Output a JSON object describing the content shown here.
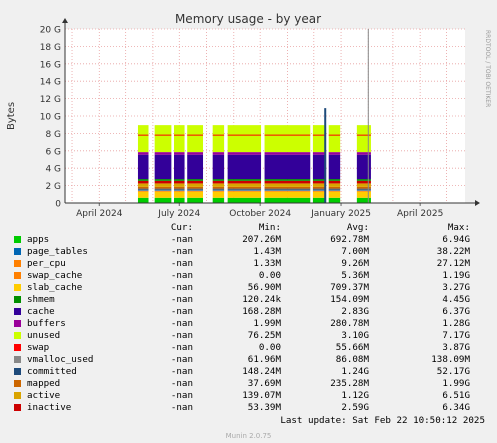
{
  "chart_data": {
    "type": "area",
    "title": "Memory usage - by year",
    "ylabel": "Bytes",
    "ylim": [
      0,
      20
    ],
    "y_unit": "G",
    "y_ticks": [
      "0",
      "2 G",
      "4 G",
      "6 G",
      "8 G",
      "10 G",
      "12 G",
      "14 G",
      "16 G",
      "18 G",
      "20 G"
    ],
    "x_range": [
      "2024-02-22",
      "2025-05-22"
    ],
    "x_ticks": [
      {
        "label": "April 2024",
        "date": "2024-04-01"
      },
      {
        "label": "July 2024",
        "date": "2024-07-01"
      },
      {
        "label": "October 2024",
        "date": "2024-10-01"
      },
      {
        "label": "January 2025",
        "date": "2025-01-01"
      },
      {
        "label": "April 2025",
        "date": "2025-04-01"
      }
    ],
    "grid": true,
    "side_text": "RRDTOOL / TOBI OETIKER",
    "data_segments": [
      [
        "2024-05-15",
        "2024-05-27"
      ],
      [
        "2024-06-03",
        "2024-06-22"
      ],
      [
        "2024-06-25",
        "2024-07-07"
      ],
      [
        "2024-07-10",
        "2024-07-28"
      ],
      [
        "2024-08-08",
        "2024-08-21"
      ],
      [
        "2024-08-25",
        "2024-10-02"
      ],
      [
        "2024-10-06",
        "2024-11-27"
      ],
      [
        "2024-11-30",
        "2024-12-15"
      ],
      [
        "2024-12-18",
        "2024-12-31"
      ],
      [
        "2025-01-19",
        "2025-02-04"
      ]
    ],
    "series_band_G": [
      {
        "name": "apps",
        "color": "#00cc00",
        "value": 0.6
      },
      {
        "name": "slab_cache",
        "color": "#ffcc00",
        "value": 0.7
      },
      {
        "name": "swap_cache",
        "color": "#ff8000",
        "value": 0.1
      },
      {
        "name": "page_tables",
        "color": "#0066b3",
        "value": 0.05
      },
      {
        "name": "vmalloc_used",
        "color": "#888888",
        "value": 0.1
      },
      {
        "name": "committed",
        "color": "#1e4a7a",
        "value": 0.1
      },
      {
        "name": "mapped",
        "color": "#cc6600",
        "value": 0.2
      },
      {
        "name": "active",
        "color": "#d9a400",
        "value": 0.4
      },
      {
        "name": "inactive",
        "color": "#cc0000",
        "value": 0.3
      },
      {
        "name": "shmem",
        "color": "#008f00",
        "value": 0.2
      },
      {
        "name": "cache",
        "color": "#330099",
        "value": 2.8
      },
      {
        "name": "buffers",
        "color": "#990099",
        "value": 0.3
      },
      {
        "name": "unused",
        "color": "#ccff00",
        "value": 3.1
      }
    ],
    "total_G": 7.8,
    "spikes": [
      {
        "series": "committed",
        "date": "2024-12-14",
        "value": 10.9
      },
      {
        "series": "vmalloc_used",
        "date": "2025-02-01",
        "value": 20.0
      }
    ]
  },
  "legend": {
    "headers": {
      "cur": "Cur:",
      "min": "Min:",
      "avg": "Avg:",
      "max": "Max:"
    },
    "rows": [
      {
        "name": "apps",
        "color": "#00cc00",
        "cur": "-nan",
        "min": "207.26M",
        "avg": "692.78M",
        "max": "6.94G"
      },
      {
        "name": "page_tables",
        "color": "#0066b3",
        "cur": "-nan",
        "min": "1.43M",
        "avg": "7.00M",
        "max": "38.22M"
      },
      {
        "name": "per_cpu",
        "color": "#ff8000",
        "cur": "-nan",
        "min": "1.33M",
        "avg": "9.26M",
        "max": "27.12M"
      },
      {
        "name": "swap_cache",
        "color": "#ff8000",
        "cur": "-nan",
        "min": "0.00",
        "avg": "5.36M",
        "max": "1.19G"
      },
      {
        "name": "slab_cache",
        "color": "#ffcc00",
        "cur": "-nan",
        "min": "56.90M",
        "avg": "709.37M",
        "max": "3.27G"
      },
      {
        "name": "shmem",
        "color": "#008f00",
        "cur": "-nan",
        "min": "120.24k",
        "avg": "154.09M",
        "max": "4.45G"
      },
      {
        "name": "cache",
        "color": "#330099",
        "cur": "-nan",
        "min": "168.28M",
        "avg": "2.83G",
        "max": "6.37G"
      },
      {
        "name": "buffers",
        "color": "#990099",
        "cur": "-nan",
        "min": "1.99M",
        "avg": "280.78M",
        "max": "1.28G"
      },
      {
        "name": "unused",
        "color": "#ccff00",
        "cur": "-nan",
        "min": "76.25M",
        "avg": "3.10G",
        "max": "7.17G"
      },
      {
        "name": "swap",
        "color": "#ff0000",
        "cur": "-nan",
        "min": "0.00",
        "avg": "55.66M",
        "max": "3.87G"
      },
      {
        "name": "vmalloc_used",
        "color": "#888888",
        "cur": "-nan",
        "min": "61.96M",
        "avg": "86.08M",
        "max": "138.09M"
      },
      {
        "name": "committed",
        "color": "#1e4a7a",
        "cur": "-nan",
        "min": "148.24M",
        "avg": "1.24G",
        "max": "52.17G"
      },
      {
        "name": "mapped",
        "color": "#cc6600",
        "cur": "-nan",
        "min": "37.69M",
        "avg": "235.28M",
        "max": "1.99G"
      },
      {
        "name": "active",
        "color": "#d9a400",
        "cur": "-nan",
        "min": "139.07M",
        "avg": "1.12G",
        "max": "6.51G"
      },
      {
        "name": "inactive",
        "color": "#cc0000",
        "cur": "-nan",
        "min": "53.39M",
        "avg": "2.59G",
        "max": "6.34G"
      }
    ]
  },
  "last_update": "Last update: Sat Feb 22 10:50:12 2025",
  "munin_version": "Munin 2.0.75"
}
